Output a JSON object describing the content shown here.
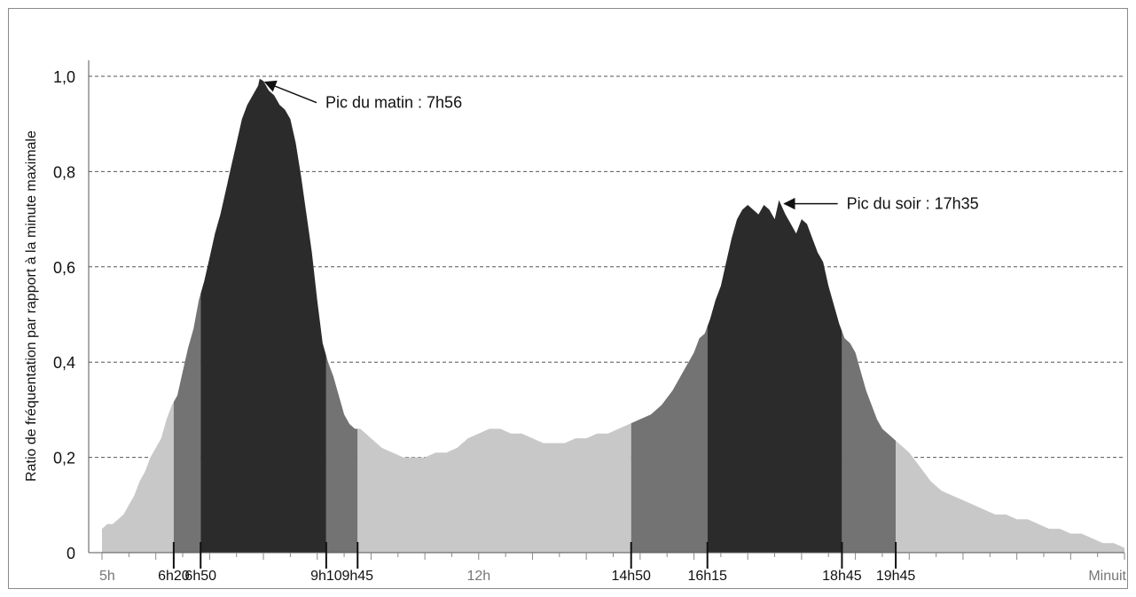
{
  "chart_data": {
    "type": "area",
    "title": "",
    "xlabel": "",
    "ylabel": "Ratio de fréquentation par rapport à la minute maximale",
    "ylim": [
      0,
      1.0
    ],
    "y_ticks": [
      "0",
      "0,2",
      "0,4",
      "0,6",
      "0,8",
      "1,0"
    ],
    "y_tick_values": [
      0,
      0.2,
      0.4,
      0.6,
      0.8,
      1.0
    ],
    "x_unit": "hours",
    "xlim": [
      5,
      24
    ],
    "x_tick_labels": [
      {
        "label": "5h",
        "hour": 5,
        "style": "light"
      },
      {
        "label": "6h20",
        "hour": 6.333,
        "style": "dark"
      },
      {
        "label": "6h50",
        "hour": 6.833,
        "style": "dark"
      },
      {
        "label": "9h10",
        "hour": 9.167,
        "style": "dark"
      },
      {
        "label": "9h45",
        "hour": 9.75,
        "style": "dark"
      },
      {
        "label": "12h",
        "hour": 12,
        "style": "light"
      },
      {
        "label": "14h50",
        "hour": 14.833,
        "style": "dark"
      },
      {
        "label": "16h15",
        "hour": 16.25,
        "style": "dark"
      },
      {
        "label": "18h45",
        "hour": 18.75,
        "style": "dark"
      },
      {
        "label": "19h45",
        "hour": 19.75,
        "style": "dark"
      },
      {
        "label": "Minuit",
        "hour": 24,
        "style": "light"
      }
    ],
    "bands": [
      {
        "from": 5,
        "to": 6.333,
        "shade": "light"
      },
      {
        "from": 6.333,
        "to": 6.833,
        "shade": "medium"
      },
      {
        "from": 6.833,
        "to": 9.167,
        "shade": "dark"
      },
      {
        "from": 9.167,
        "to": 9.75,
        "shade": "medium"
      },
      {
        "from": 9.75,
        "to": 14.833,
        "shade": "light"
      },
      {
        "from": 14.833,
        "to": 16.25,
        "shade": "medium"
      },
      {
        "from": 16.25,
        "to": 18.75,
        "shade": "dark"
      },
      {
        "from": 18.75,
        "to": 19.75,
        "shade": "medium"
      },
      {
        "from": 19.75,
        "to": 24,
        "shade": "light"
      }
    ],
    "colors": {
      "light": "#c8c8c8",
      "medium": "#737373",
      "dark": "#2b2b2b",
      "grid": "#555555",
      "axis": "#555555"
    },
    "grid": true,
    "annotations": [
      {
        "text": "Pic du matin : 7h56",
        "hour": 7.933,
        "value": 0.995
      },
      {
        "text": "Pic du soir : 17h35",
        "hour": 17.583,
        "value": 0.74
      }
    ],
    "series": [
      {
        "x": [
          5.0,
          5.1,
          5.2,
          5.3,
          5.4,
          5.5,
          5.6,
          5.7,
          5.8,
          5.9,
          6.0,
          6.1,
          6.2,
          6.3,
          6.4,
          6.5,
          6.6,
          6.7,
          6.8,
          6.9,
          7.0,
          7.1,
          7.2,
          7.3,
          7.4,
          7.5,
          7.6,
          7.7,
          7.8,
          7.9,
          7.93,
          8.0,
          8.1,
          8.2,
          8.3,
          8.4,
          8.5,
          8.6,
          8.7,
          8.8,
          8.9,
          9.0,
          9.1,
          9.2,
          9.3,
          9.4,
          9.5,
          9.6,
          9.7,
          9.8,
          9.9,
          10.0,
          10.2,
          10.4,
          10.6,
          10.8,
          11.0,
          11.2,
          11.4,
          11.6,
          11.8,
          12.0,
          12.2,
          12.4,
          12.6,
          12.8,
          13.0,
          13.2,
          13.4,
          13.6,
          13.8,
          14.0,
          14.2,
          14.4,
          14.6,
          14.8,
          15.0,
          15.2,
          15.4,
          15.6,
          15.8,
          16.0,
          16.1,
          16.2,
          16.3,
          16.4,
          16.5,
          16.6,
          16.7,
          16.8,
          16.9,
          17.0,
          17.1,
          17.2,
          17.3,
          17.4,
          17.5,
          17.58,
          17.7,
          17.8,
          17.9,
          18.0,
          18.1,
          18.2,
          18.3,
          18.4,
          18.5,
          18.6,
          18.7,
          18.8,
          18.9,
          19.0,
          19.1,
          19.2,
          19.3,
          19.4,
          19.5,
          19.6,
          19.7,
          19.8,
          20.0,
          20.2,
          20.4,
          20.6,
          20.8,
          21.0,
          21.2,
          21.4,
          21.6,
          21.8,
          22.0,
          22.2,
          22.4,
          22.6,
          22.8,
          23.0,
          23.2,
          23.4,
          23.6,
          23.8,
          24.0
        ],
        "values": [
          0.05,
          0.06,
          0.06,
          0.07,
          0.08,
          0.1,
          0.12,
          0.15,
          0.17,
          0.2,
          0.22,
          0.24,
          0.28,
          0.31,
          0.33,
          0.38,
          0.43,
          0.47,
          0.53,
          0.57,
          0.62,
          0.67,
          0.71,
          0.76,
          0.81,
          0.86,
          0.91,
          0.94,
          0.96,
          0.98,
          0.995,
          0.99,
          0.97,
          0.96,
          0.94,
          0.93,
          0.91,
          0.86,
          0.79,
          0.71,
          0.63,
          0.53,
          0.44,
          0.4,
          0.37,
          0.33,
          0.29,
          0.27,
          0.26,
          0.26,
          0.25,
          0.24,
          0.22,
          0.21,
          0.2,
          0.2,
          0.2,
          0.21,
          0.21,
          0.22,
          0.24,
          0.25,
          0.26,
          0.26,
          0.25,
          0.25,
          0.24,
          0.23,
          0.23,
          0.23,
          0.24,
          0.24,
          0.25,
          0.25,
          0.26,
          0.27,
          0.28,
          0.29,
          0.31,
          0.34,
          0.38,
          0.42,
          0.45,
          0.46,
          0.49,
          0.53,
          0.56,
          0.61,
          0.66,
          0.7,
          0.72,
          0.73,
          0.72,
          0.71,
          0.73,
          0.72,
          0.7,
          0.74,
          0.71,
          0.69,
          0.67,
          0.7,
          0.69,
          0.66,
          0.63,
          0.61,
          0.56,
          0.52,
          0.48,
          0.45,
          0.44,
          0.42,
          0.38,
          0.34,
          0.31,
          0.28,
          0.26,
          0.25,
          0.24,
          0.23,
          0.21,
          0.18,
          0.15,
          0.13,
          0.12,
          0.11,
          0.1,
          0.09,
          0.08,
          0.08,
          0.07,
          0.07,
          0.06,
          0.05,
          0.05,
          0.04,
          0.04,
          0.03,
          0.02,
          0.02,
          0.01
        ]
      }
    ]
  }
}
